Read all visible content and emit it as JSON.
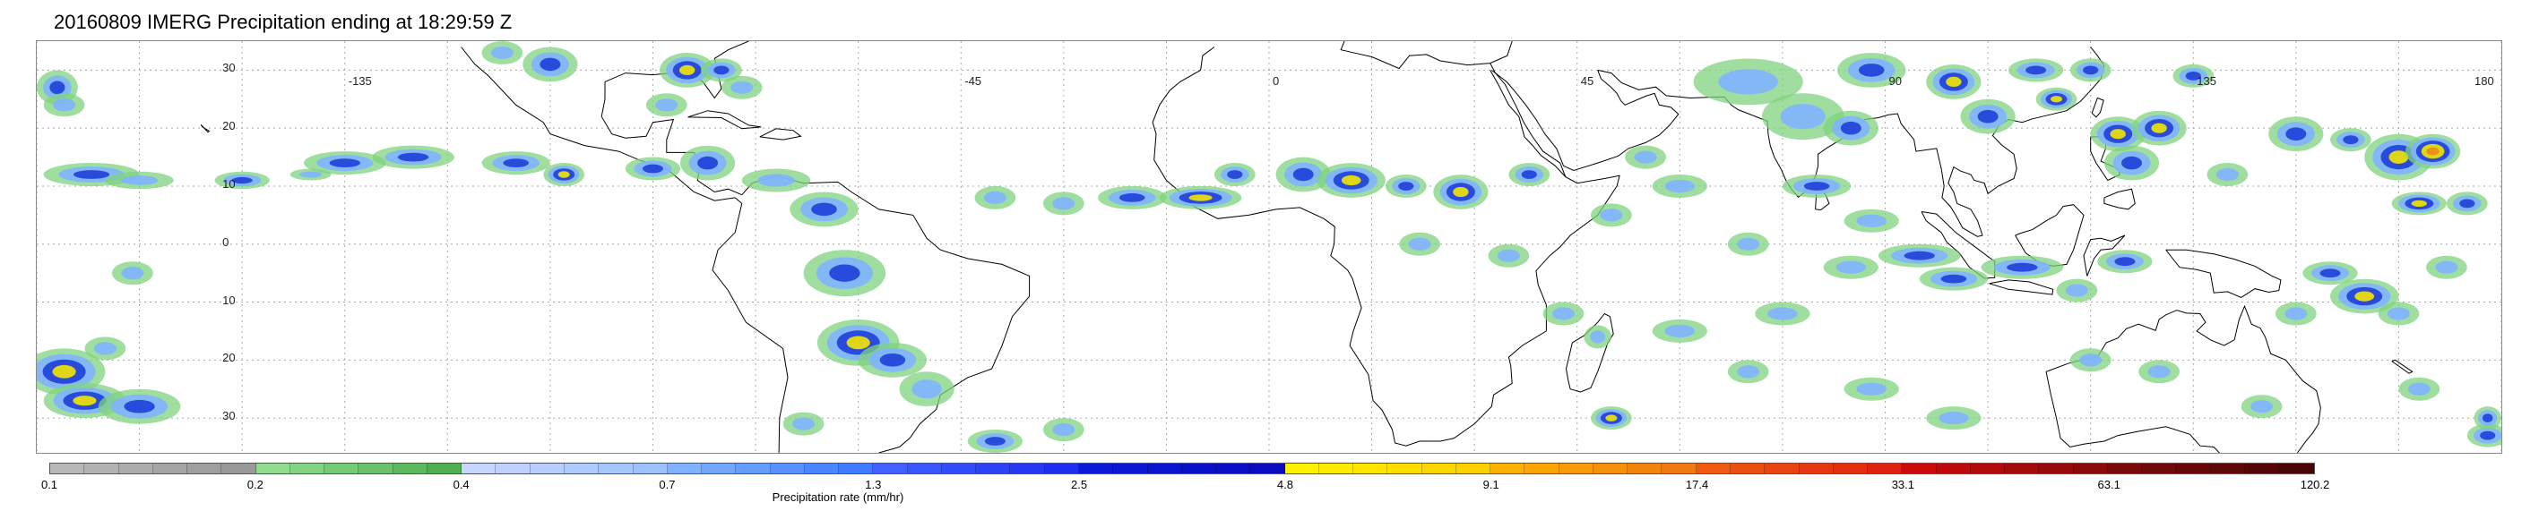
{
  "title": "20160809 IMERG Precipitation ending at 18:29:59 Z",
  "map": {
    "lon_labels": [
      {
        "text": "-135",
        "lon": -135
      },
      {
        "text": "-45",
        "lon": -45
      },
      {
        "text": "0",
        "lon": 0
      },
      {
        "text": "45",
        "lon": 45
      },
      {
        "text": "90",
        "lon": 90
      },
      {
        "text": "135",
        "lon": 135
      },
      {
        "text": "180",
        "lon": 180
      }
    ],
    "lat_labels": [
      {
        "text": "30",
        "lat": 30
      },
      {
        "text": "20",
        "lat": 20
      },
      {
        "text": "10",
        "lat": 10
      },
      {
        "text": "0",
        "lat": 0
      },
      {
        "text": "10",
        "lat": -10
      },
      {
        "text": "20",
        "lat": -20
      },
      {
        "text": "30",
        "lat": -30
      }
    ],
    "lon_range": [
      -180,
      180
    ],
    "lat_range": [
      -36,
      35
    ],
    "grid": "dotted",
    "colors": {
      "light_green": "#7fd37f",
      "blue": "#1f3fd8",
      "light_blue": "#7fb2ff",
      "yellow": "#f2e600",
      "orange": "#f08a1a",
      "red": "#d81a1a",
      "coast": "#000000",
      "grid": "#aaaaaa"
    }
  },
  "colorbar": {
    "title": "Precipitation rate (mm/hr)",
    "colors": [
      "#aaaaaa",
      "#aaaaaa",
      "#aaaaaa",
      "#aaaaaa",
      "#aaaaaa",
      "#aaaaaa",
      "#aaaaaa",
      "#aaaaaa",
      "#aaaaaa",
      "#aaaaaa",
      "#aaaaaa",
      "#aaaaaa",
      "#aaaaaa",
      "#aaaaaa",
      "#aaaaaa",
      "#aaaaaa",
      "#aaaaaa",
      "#aaaaaa",
      "#aaaaaa",
      "#aaaaaa",
      "#aaaaaa",
      "#aaaaaa",
      "#aaaaaa",
      "#aaaaaa",
      "#aaaaaa",
      "#aaaaaa",
      "#aaaaaa",
      "#aaaaaa",
      "#aaaaaa",
      "#aaaaaa",
      "#aaaaaa",
      "#aaaaaa",
      "#aaaaaa",
      "#aaaaaa",
      "#aaaaaa",
      "#aaaaaa",
      "#aaaaaa",
      "#aaaaaa",
      "#aaaaaa",
      "#aaaaaa",
      "#aaaaaa",
      "#aaaaaa",
      "#aaaaaa",
      "#aaaaaa",
      "#aaaaaa",
      "#aaaaaa",
      "#aaaaaa",
      "#aaaaaa",
      "#aaaaaa",
      "#aaaaaa",
      "#aaaaaa",
      "#aaaaaa",
      "#aaaaaa",
      "#aaaaaa",
      "#aaaaaa",
      "#aaaaaa",
      "#aaaaaa",
      "#aaaaaa",
      "#aaaaaa",
      "#aaaaaa",
      "#aaaaaa",
      "#aaaaaa",
      "#aaaaaa",
      "#aaaaaa",
      "#aaaaaa",
      "#aaaaaa",
      "#aaaaaa"
    ],
    "stops": [
      {
        "text": "0.1",
        "from": "#b8b8b8",
        "to": "#999999"
      },
      {
        "text": "0.2",
        "from": "#8fdc8f",
        "to": "#4fb04f"
      },
      {
        "text": "0.4",
        "from": "#c7d6ff",
        "to": "#9ec2ff"
      },
      {
        "text": "0.7",
        "from": "#7fb2ff",
        "to": "#3f7bff"
      },
      {
        "text": "1.3",
        "from": "#3f5fff",
        "to": "#1f2ff0"
      },
      {
        "text": "2.5",
        "from": "#0a1ad8",
        "to": "#0a0ac0"
      },
      {
        "text": "4.8",
        "from": "#fff200",
        "to": "#ffd000"
      },
      {
        "text": "9.1",
        "from": "#ffb000",
        "to": "#f07a10"
      },
      {
        "text": "17.4",
        "from": "#ef5a10",
        "to": "#e02010"
      },
      {
        "text": "33.1",
        "from": "#cc0a0a",
        "to": "#8a0a0a"
      },
      {
        "text": "63.1",
        "from": "#7a0a0a",
        "to": "#4a0505"
      },
      {
        "text": "120.2",
        "from": "#4a0505",
        "to": "#4a0505"
      }
    ]
  }
}
